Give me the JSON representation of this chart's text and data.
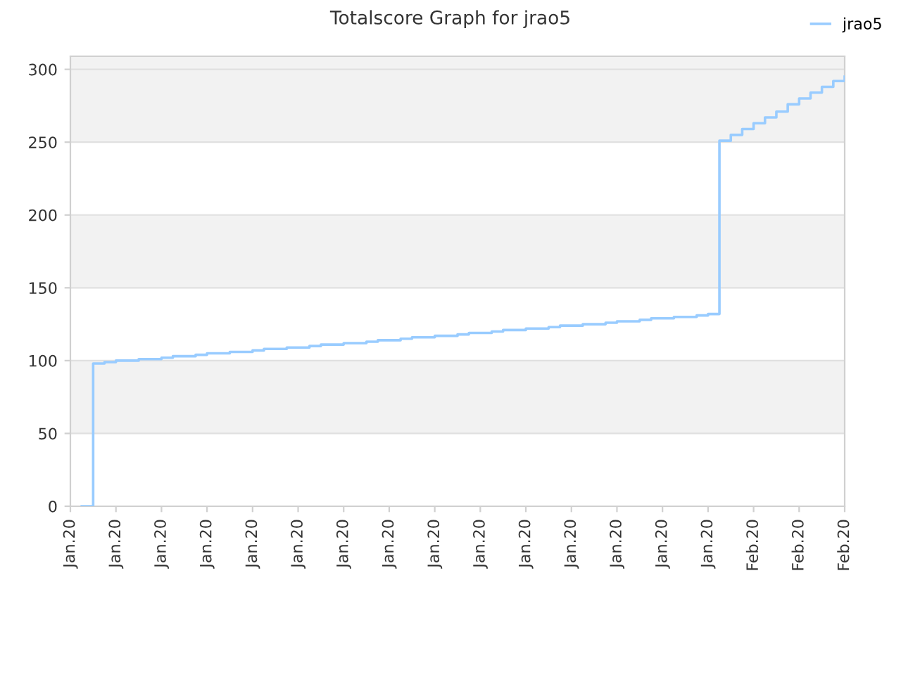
{
  "chart_data": {
    "type": "step",
    "title": "Totalscore Graph for jrao5",
    "categories": [
      "Jan.20",
      null,
      null,
      null,
      "Jan.20",
      null,
      null,
      null,
      "Jan.20",
      null,
      null,
      null,
      "Jan.20",
      null,
      null,
      null,
      "Jan.20",
      null,
      null,
      null,
      "Jan.20",
      null,
      null,
      null,
      "Jan.20",
      null,
      null,
      null,
      "Jan.20",
      null,
      null,
      null,
      "Jan.20",
      null,
      null,
      null,
      "Jan.20",
      null,
      null,
      null,
      "Jan.20",
      null,
      null,
      null,
      "Jan.20",
      null,
      null,
      null,
      "Jan.20",
      null,
      null,
      null,
      "Jan.20",
      null,
      null,
      null,
      "Jan.20",
      null,
      null,
      null,
      "Feb.20",
      null,
      null,
      null,
      "Feb.20",
      null,
      null,
      null,
      "Feb.20"
    ],
    "series": [
      {
        "name": "jrao5",
        "color": "#99ccff",
        "values": [
          null,
          0,
          98,
          99,
          100,
          100,
          101,
          101,
          102,
          103,
          103,
          104,
          105,
          105,
          106,
          106,
          107,
          108,
          108,
          109,
          109,
          110,
          111,
          111,
          112,
          112,
          113,
          114,
          114,
          115,
          116,
          116,
          117,
          117,
          118,
          119,
          119,
          120,
          121,
          121,
          122,
          122,
          123,
          124,
          124,
          125,
          125,
          126,
          127,
          127,
          128,
          129,
          129,
          130,
          130,
          131,
          132,
          251,
          255,
          259,
          263,
          267,
          271,
          276,
          280,
          284,
          288,
          292,
          295
        ]
      }
    ],
    "ylim": [
      0,
      309
    ],
    "yticks": [
      0,
      50,
      100,
      150,
      200,
      250,
      300
    ],
    "bands": [
      {
        "axis": "y",
        "from": 50,
        "to": 100,
        "color": "#f2f2f2"
      },
      {
        "axis": "y",
        "from": 150,
        "to": 200,
        "color": "#f2f2f2"
      },
      {
        "axis": "y",
        "from": 250,
        "to": 309,
        "color": "#f2f2f2"
      }
    ],
    "grid": "y",
    "legend": "top right",
    "marker": "none",
    "line_style": "solid"
  }
}
